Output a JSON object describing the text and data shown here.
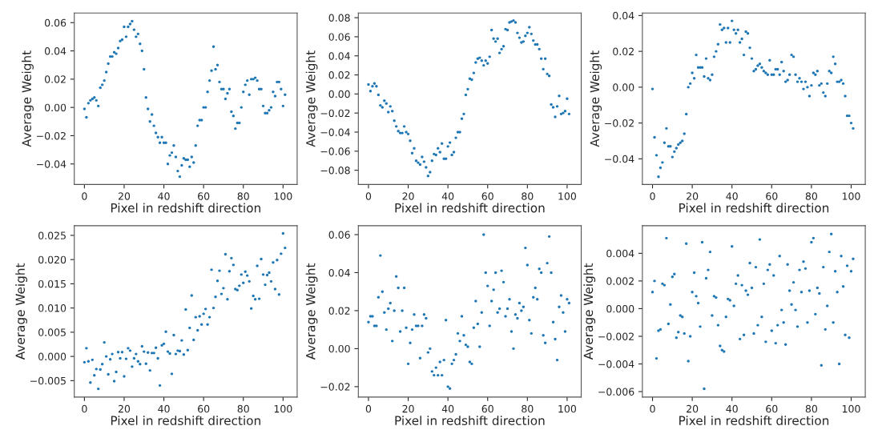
{
  "chart_data": [
    {
      "type": "scatter",
      "xlabel": "Pixel in redshift direction",
      "ylabel": "Average Weight",
      "color": "#1f77b4",
      "marker": "circle",
      "grid": false,
      "legend": false,
      "x": [
        0,
        1,
        2,
        3,
        4,
        5,
        6,
        7,
        8,
        9,
        10,
        11,
        12,
        13,
        14,
        15,
        16,
        17,
        18,
        19,
        20,
        21,
        22,
        23,
        24,
        25,
        26,
        27,
        28,
        29,
        30,
        31,
        32,
        33,
        34,
        35,
        36,
        37,
        38,
        39,
        40,
        41,
        42,
        43,
        44,
        45,
        46,
        47,
        48,
        49,
        50,
        51,
        52,
        53,
        54,
        55,
        56,
        57,
        58,
        59,
        60,
        61,
        62,
        63,
        64,
        65,
        66,
        67,
        68,
        69,
        70,
        71,
        72,
        73,
        74,
        75,
        76,
        77,
        78,
        79,
        80,
        81,
        82,
        83,
        84,
        85,
        86,
        87,
        88,
        89,
        90,
        91,
        92,
        93,
        94,
        95,
        96,
        97,
        98,
        99,
        100,
        101
      ],
      "values": [
        -0.001,
        -0.007,
        0.003,
        0.005,
        0.006,
        0.007,
        0.005,
        0.001,
        0.014,
        0.016,
        0.019,
        0.025,
        0.031,
        0.036,
        0.036,
        0.039,
        0.038,
        0.042,
        0.047,
        0.048,
        0.057,
        0.05,
        0.057,
        0.059,
        0.061,
        0.055,
        0.05,
        0.052,
        0.045,
        0.04,
        0.027,
        0.007,
        -0.001,
        -0.01,
        -0.005,
        -0.013,
        -0.018,
        -0.021,
        -0.025,
        -0.021,
        -0.025,
        -0.025,
        -0.04,
        -0.034,
        -0.032,
        -0.027,
        -0.035,
        -0.045,
        -0.049,
        -0.041,
        -0.036,
        -0.037,
        -0.037,
        -0.042,
        -0.035,
        -0.039,
        -0.027,
        -0.013,
        -0.009,
        -0.009,
        0.0,
        0.0,
        0.011,
        0.019,
        0.026,
        0.043,
        0.027,
        0.03,
        0.018,
        0.013,
        0.013,
        0.006,
        0.01,
        0.013,
        -0.003,
        -0.006,
        -0.015,
        -0.011,
        -0.011,
        0.0,
        0.011,
        0.016,
        0.019,
        0.009,
        0.02,
        0.02,
        0.021,
        0.019,
        0.013,
        0.013,
        0.001,
        -0.004,
        -0.004,
        -0.002,
        0.0,
        0.011,
        0.008,
        0.018,
        0.018,
        0.013,
        0.001,
        0.009
      ],
      "xlim": [
        -5.1,
        107.1
      ],
      "ylim": [
        -0.0545,
        0.0668
      ],
      "xticks": [
        0,
        20,
        40,
        60,
        80,
        100
      ],
      "yticks": [
        {
          "value": -0.04,
          "label": "−0.04"
        },
        {
          "value": -0.02,
          "label": "−0.02"
        },
        {
          "value": 0,
          "label": "0.00"
        },
        {
          "value": 0.02,
          "label": "0.02"
        },
        {
          "value": 0.04,
          "label": "0.04"
        },
        {
          "value": 0.06,
          "label": "0.06"
        }
      ]
    },
    {
      "type": "scatter",
      "xlabel": "Pixel in redshift direction",
      "ylabel": "Average Weight",
      "color": "#1f77b4",
      "marker": "circle",
      "grid": false,
      "legend": false,
      "x": [
        0,
        1,
        2,
        3,
        4,
        5,
        6,
        7,
        8,
        9,
        10,
        11,
        12,
        13,
        14,
        15,
        16,
        17,
        18,
        19,
        20,
        21,
        22,
        23,
        24,
        25,
        26,
        27,
        28,
        29,
        30,
        31,
        32,
        33,
        34,
        35,
        36,
        37,
        38,
        39,
        40,
        41,
        42,
        43,
        44,
        45,
        46,
        47,
        48,
        49,
        50,
        51,
        52,
        53,
        54,
        55,
        56,
        57,
        58,
        59,
        60,
        61,
        62,
        63,
        64,
        65,
        66,
        67,
        68,
        69,
        70,
        71,
        72,
        73,
        74,
        75,
        76,
        77,
        78,
        79,
        80,
        81,
        82,
        83,
        84,
        85,
        86,
        87,
        88,
        89,
        90,
        91,
        92,
        93,
        94,
        95,
        96,
        97,
        98,
        99,
        100,
        101
      ],
      "values": [
        0.01,
        0.003,
        0.008,
        0.011,
        0.008,
        -0.001,
        -0.012,
        -0.014,
        -0.007,
        -0.01,
        -0.019,
        -0.013,
        -0.018,
        -0.028,
        -0.034,
        -0.039,
        -0.041,
        -0.041,
        -0.034,
        -0.04,
        -0.042,
        -0.049,
        -0.062,
        -0.057,
        -0.07,
        -0.072,
        -0.074,
        -0.066,
        -0.071,
        -0.077,
        -0.086,
        -0.082,
        -0.07,
        -0.063,
        -0.064,
        -0.057,
        -0.061,
        -0.052,
        -0.068,
        -0.068,
        -0.055,
        -0.051,
        -0.064,
        -0.061,
        -0.046,
        -0.04,
        -0.04,
        -0.026,
        -0.021,
        -0.001,
        0.005,
        0.016,
        0.015,
        0.022,
        0.033,
        0.037,
        0.038,
        0.035,
        0.03,
        0.035,
        0.032,
        0.039,
        0.067,
        0.058,
        0.055,
        0.058,
        0.043,
        0.047,
        0.05,
        0.068,
        0.067,
        0.075,
        0.076,
        0.077,
        0.075,
        0.064,
        0.059,
        0.054,
        0.055,
        0.061,
        0.064,
        0.07,
        0.063,
        0.056,
        0.052,
        0.052,
        0.047,
        0.037,
        0.026,
        0.037,
        0.021,
        0.019,
        -0.011,
        -0.014,
        -0.024,
        -0.013,
        -0.002,
        -0.021,
        -0.02,
        -0.018,
        -0.005,
        -0.021
      ],
      "xlim": [
        -5.1,
        107.1
      ],
      "ylim": [
        -0.0949,
        0.0849
      ],
      "xticks": [
        0,
        20,
        40,
        60,
        80,
        100
      ],
      "yticks": [
        {
          "value": -0.08,
          "label": "−0.08"
        },
        {
          "value": -0.06,
          "label": "−0.06"
        },
        {
          "value": -0.04,
          "label": "−0.04"
        },
        {
          "value": -0.02,
          "label": "−0.02"
        },
        {
          "value": 0,
          "label": "0.00"
        },
        {
          "value": 0.02,
          "label": "0.02"
        },
        {
          "value": 0.04,
          "label": "0.04"
        },
        {
          "value": 0.06,
          "label": "0.06"
        },
        {
          "value": 0.08,
          "label": "0.08"
        }
      ]
    },
    {
      "type": "scatter",
      "xlabel": "Pixel in redshift direction",
      "ylabel": "Average Weight",
      "color": "#1f77b4",
      "marker": "circle",
      "grid": false,
      "legend": false,
      "x": [
        0,
        1,
        2,
        3,
        4,
        5,
        6,
        7,
        8,
        9,
        10,
        11,
        12,
        13,
        14,
        15,
        16,
        17,
        18,
        19,
        20,
        21,
        22,
        23,
        24,
        25,
        26,
        27,
        28,
        29,
        30,
        31,
        32,
        33,
        34,
        35,
        36,
        37,
        38,
        39,
        40,
        41,
        42,
        43,
        44,
        45,
        46,
        47,
        48,
        49,
        50,
        51,
        52,
        53,
        54,
        55,
        56,
        57,
        58,
        59,
        60,
        61,
        62,
        63,
        64,
        65,
        66,
        67,
        68,
        69,
        70,
        71,
        72,
        73,
        74,
        75,
        76,
        77,
        78,
        79,
        80,
        81,
        82,
        83,
        84,
        85,
        86,
        87,
        88,
        89,
        90,
        91,
        92,
        93,
        94,
        95,
        96,
        97,
        98,
        99,
        100,
        101
      ],
      "values": [
        -0.001,
        -0.028,
        -0.038,
        -0.05,
        -0.045,
        -0.042,
        -0.031,
        -0.023,
        -0.033,
        -0.033,
        -0.039,
        -0.036,
        -0.034,
        -0.032,
        -0.031,
        -0.03,
        -0.026,
        -0.015,
        0.0,
        0.002,
        0.008,
        0.005,
        0.018,
        0.011,
        0.011,
        0.011,
        0.006,
        0.016,
        0.005,
        0.004,
        0.007,
        0.017,
        0.02,
        0.024,
        0.035,
        0.032,
        0.033,
        0.025,
        0.033,
        0.025,
        0.037,
        0.032,
        0.03,
        0.032,
        0.025,
        0.027,
        0.018,
        0.031,
        0.03,
        0.022,
        0.016,
        0.009,
        0.01,
        0.012,
        0.013,
        0.011,
        0.009,
        0.008,
        0.007,
        0.015,
        0.007,
        0.007,
        0.01,
        0.01,
        0.007,
        0.014,
        0.009,
        0.003,
        0.004,
        0.007,
        0.018,
        0.017,
        0.007,
        0.003,
        0.005,
        0.003,
        -0.001,
        0.003,
        0.0,
        -0.005,
        0.001,
        0.008,
        0.007,
        0.009,
        0.001,
        0.002,
        -0.003,
        -0.005,
        0.002,
        0.009,
        0.008,
        0.017,
        0.013,
        0.003,
        0.003,
        0.004,
        0.002,
        -0.005,
        -0.016,
        -0.016,
        -0.02,
        -0.023
      ],
      "xlim": [
        -5.1,
        107.1
      ],
      "ylim": [
        -0.0543,
        0.0414
      ],
      "xticks": [
        0,
        20,
        40,
        60,
        80,
        100
      ],
      "yticks": [
        {
          "value": -0.04,
          "label": "−0.04"
        },
        {
          "value": -0.02,
          "label": "−0.02"
        },
        {
          "value": 0,
          "label": "0.00"
        },
        {
          "value": 0.02,
          "label": "0.02"
        },
        {
          "value": 0.04,
          "label": "0.04"
        }
      ]
    },
    {
      "type": "scatter",
      "xlabel": "Pixel in redshift direction",
      "ylabel": "Average Weight",
      "color": "#1f77b4",
      "marker": "circle",
      "grid": false,
      "legend": false,
      "x": [
        0,
        1,
        2,
        3,
        4,
        5,
        6,
        7,
        8,
        9,
        10,
        11,
        12,
        13,
        14,
        15,
        16,
        17,
        18,
        19,
        20,
        21,
        22,
        23,
        24,
        25,
        26,
        27,
        28,
        29,
        30,
        31,
        32,
        33,
        34,
        35,
        36,
        37,
        38,
        39,
        40,
        41,
        42,
        43,
        44,
        45,
        46,
        47,
        48,
        49,
        50,
        51,
        52,
        53,
        54,
        55,
        56,
        57,
        58,
        59,
        60,
        61,
        62,
        63,
        64,
        65,
        66,
        67,
        68,
        69,
        70,
        71,
        72,
        73,
        74,
        75,
        76,
        77,
        78,
        79,
        80,
        81,
        82,
        83,
        84,
        85,
        86,
        87,
        88,
        89,
        90,
        91,
        92,
        93,
        94,
        95,
        96,
        97,
        98,
        99,
        100,
        101
      ],
      "values": [
        -0.0012,
        0.0017,
        -0.001,
        -0.0054,
        -0.0007,
        -0.0039,
        -0.0026,
        -0.0067,
        -0.0027,
        -0.0016,
        0.0029,
        0.0,
        -0.0037,
        -0.0006,
        0.0005,
        -0.0051,
        -0.0032,
        0.0009,
        -0.0004,
        0.0009,
        -0.0041,
        -0.0005,
        0.0017,
        0.0012,
        -0.0021,
        -0.0004,
        0.0005,
        -0.001,
        -0.0016,
        0.0021,
        0.001,
        -0.0015,
        0.0008,
        -0.0029,
        0.0007,
        0.0007,
        0.0018,
        -0.0004,
        -0.006,
        0.0023,
        0.0026,
        0.0051,
        0.001,
        0.0006,
        -0.0036,
        0.0044,
        0.0005,
        0.0012,
        0.0011,
        0.0033,
        0.0004,
        0.0097,
        0.0013,
        0.0059,
        0.0126,
        0.0034,
        0.0081,
        0.0054,
        0.0083,
        0.0066,
        0.0088,
        0.0098,
        0.0066,
        0.0081,
        0.0179,
        0.01,
        0.0123,
        0.0156,
        0.0177,
        0.0129,
        0.0141,
        0.0211,
        0.0118,
        0.0176,
        0.0203,
        0.0189,
        0.0139,
        0.0137,
        0.0146,
        0.0169,
        0.0152,
        0.0175,
        0.0167,
        0.0155,
        0.0099,
        0.0125,
        0.0118,
        0.0187,
        0.0119,
        0.0201,
        0.0169,
        0.0148,
        0.0168,
        0.0173,
        0.0155,
        0.0194,
        0.0139,
        0.0199,
        0.0128,
        0.0212,
        0.0254,
        0.0224
      ],
      "xlim": [
        -5.1,
        107.1
      ],
      "ylim": [
        -0.0084,
        0.027
      ],
      "xticks": [
        0,
        20,
        40,
        60,
        80,
        100
      ],
      "yticks": [
        {
          "value": -0.005,
          "label": "−0.005"
        },
        {
          "value": 0,
          "label": "0.000"
        },
        {
          "value": 0.005,
          "label": "0.005"
        },
        {
          "value": 0.01,
          "label": "0.010"
        },
        {
          "value": 0.015,
          "label": "0.015"
        },
        {
          "value": 0.02,
          "label": "0.020"
        },
        {
          "value": 0.025,
          "label": "0.025"
        }
      ]
    },
    {
      "type": "scatter",
      "xlabel": "Pixel in redshift direction",
      "ylabel": "Average Weight",
      "color": "#1f77b4",
      "marker": "circle",
      "grid": false,
      "legend": false,
      "x": [
        0,
        1,
        2,
        3,
        4,
        5,
        6,
        7,
        8,
        9,
        10,
        11,
        12,
        13,
        14,
        15,
        16,
        17,
        18,
        19,
        20,
        21,
        22,
        23,
        24,
        25,
        26,
        27,
        28,
        29,
        30,
        31,
        32,
        33,
        34,
        35,
        36,
        37,
        38,
        39,
        40,
        41,
        42,
        43,
        44,
        45,
        46,
        47,
        48,
        49,
        50,
        51,
        52,
        53,
        54,
        55,
        56,
        57,
        58,
        59,
        60,
        61,
        62,
        63,
        64,
        65,
        66,
        67,
        68,
        69,
        70,
        71,
        72,
        73,
        74,
        75,
        76,
        77,
        78,
        79,
        80,
        81,
        82,
        83,
        84,
        85,
        86,
        87,
        88,
        89,
        90,
        91,
        92,
        93,
        94,
        95,
        96,
        97,
        98,
        99,
        100,
        101
      ],
      "values": [
        0.014,
        0.017,
        0.017,
        0.012,
        0.012,
        0.027,
        0.049,
        0.03,
        0.019,
        0.01,
        0.021,
        0.024,
        0.004,
        0.02,
        0.038,
        0.032,
        0.009,
        0.02,
        0.032,
        0.011,
        -0.008,
        0.003,
        0.01,
        0.018,
        0.012,
        0.012,
        -0.005,
        0.012,
        0.018,
        0.016,
        -0.002,
        0.0,
        -0.012,
        -0.014,
        -0.01,
        -0.014,
        -0.007,
        -0.014,
        -0.006,
        0.015,
        -0.02,
        -0.021,
        -0.008,
        -0.006,
        -0.003,
        0.008,
        0.004,
        0.017,
        0.007,
        0.002,
        0.001,
        -0.007,
        -0.008,
        0.011,
        0.025,
        0.013,
        0.001,
        0.019,
        0.06,
        0.04,
        0.033,
        0.012,
        0.025,
        0.031,
        0.04,
        0.019,
        0.021,
        0.041,
        0.035,
        0.017,
        0.021,
        0.026,
        0.009,
        0.0,
        0.018,
        0.016,
        0.024,
        0.02,
        0.022,
        0.053,
        0.044,
        0.015,
        0.008,
        0.027,
        0.032,
        0.026,
        0.042,
        0.04,
        0.007,
        0.003,
        0.045,
        0.059,
        0.04,
        0.014,
        0.005,
        -0.006,
        0.022,
        0.028,
        0.019,
        0.009,
        0.026,
        0.024
      ],
      "xlim": [
        -5.1,
        107.1
      ],
      "ylim": [
        -0.0255,
        0.0647
      ],
      "xticks": [
        0,
        20,
        40,
        60,
        80,
        100
      ],
      "yticks": [
        {
          "value": -0.02,
          "label": "−0.02"
        },
        {
          "value": 0,
          "label": "0.00"
        },
        {
          "value": 0.02,
          "label": "0.02"
        },
        {
          "value": 0.04,
          "label": "0.04"
        },
        {
          "value": 0.06,
          "label": "0.06"
        }
      ]
    },
    {
      "type": "scatter",
      "xlabel": "Pixel in redshift direction",
      "ylabel": "Average Weight",
      "color": "#1f77b4",
      "marker": "circle",
      "grid": false,
      "legend": false,
      "x": [
        0,
        1,
        2,
        3,
        4,
        5,
        6,
        7,
        8,
        9,
        10,
        11,
        12,
        13,
        14,
        15,
        16,
        17,
        18,
        19,
        20,
        21,
        22,
        23,
        24,
        25,
        26,
        27,
        28,
        29,
        30,
        31,
        32,
        33,
        34,
        35,
        36,
        37,
        38,
        39,
        40,
        41,
        42,
        43,
        44,
        45,
        46,
        47,
        48,
        49,
        50,
        51,
        52,
        53,
        54,
        55,
        56,
        57,
        58,
        59,
        60,
        61,
        62,
        63,
        64,
        65,
        66,
        67,
        68,
        69,
        70,
        71,
        72,
        73,
        74,
        75,
        76,
        77,
        78,
        79,
        80,
        81,
        82,
        83,
        84,
        85,
        86,
        87,
        88,
        89,
        90,
        91,
        92,
        93,
        94,
        95,
        96,
        97,
        98,
        99,
        100,
        101
      ],
      "values": [
        0.0012,
        0.002,
        -0.0036,
        -0.0016,
        -0.0015,
        0.0018,
        0.0017,
        0.0051,
        -0.0011,
        0.0003,
        0.0023,
        0.0025,
        -0.0021,
        -0.0017,
        -0.0005,
        -0.0006,
        -0.0018,
        0.0047,
        -0.0038,
        -0.002,
        0.0012,
        0.0026,
        0.0009,
        0.0004,
        -0.0013,
        0.0048,
        -0.0058,
        0.0022,
        0.0028,
        0.0041,
        -0.0005,
        0.0009,
        0.0008,
        -0.0012,
        -0.0027,
        -0.003,
        -0.0031,
        -0.0006,
        0.0007,
        0.0006,
        0.0045,
        0.0002,
        0.0018,
        0.0024,
        -0.0022,
        0.0017,
        -0.0019,
        0.0013,
        0.001,
        0.0033,
        0.0015,
        -0.0018,
        0.003,
        -0.0012,
        0.005,
        -0.0006,
        0.0018,
        -0.0024,
        0.0028,
        0.0032,
        -0.0016,
        0.0024,
        -0.0025,
        -0.0012,
        0.0038,
        -0.0001,
        -0.001,
        -0.0026,
        0.0032,
        0.0013,
        0.0003,
        0.0019,
        -0.0001,
        -0.0013,
        0.0028,
        0.0012,
        0.0034,
        0.0029,
        -0.001,
        0.0013,
        0.0048,
        0.0051,
        -0.0004,
        0.0015,
        0.0011,
        -0.0041,
        0.003,
        -0.0015,
        0.0002,
        0.0041,
        0.0054,
        -0.001,
        0.0027,
        0.0012,
        -0.004,
        0.0038,
        0.0016,
        -0.0019,
        0.0031,
        -0.0021,
        0.0027,
        0.0036
      ],
      "xlim": [
        -5.1,
        107.1
      ],
      "ylim": [
        -0.0064,
        0.006
      ],
      "xticks": [
        0,
        20,
        40,
        60,
        80,
        100
      ],
      "yticks": [
        {
          "value": -0.006,
          "label": "−0.006"
        },
        {
          "value": -0.004,
          "label": "−0.004"
        },
        {
          "value": -0.002,
          "label": "−0.002"
        },
        {
          "value": 0,
          "label": "0.000"
        },
        {
          "value": 0.002,
          "label": "0.002"
        },
        {
          "value": 0.004,
          "label": "0.004"
        }
      ]
    }
  ]
}
